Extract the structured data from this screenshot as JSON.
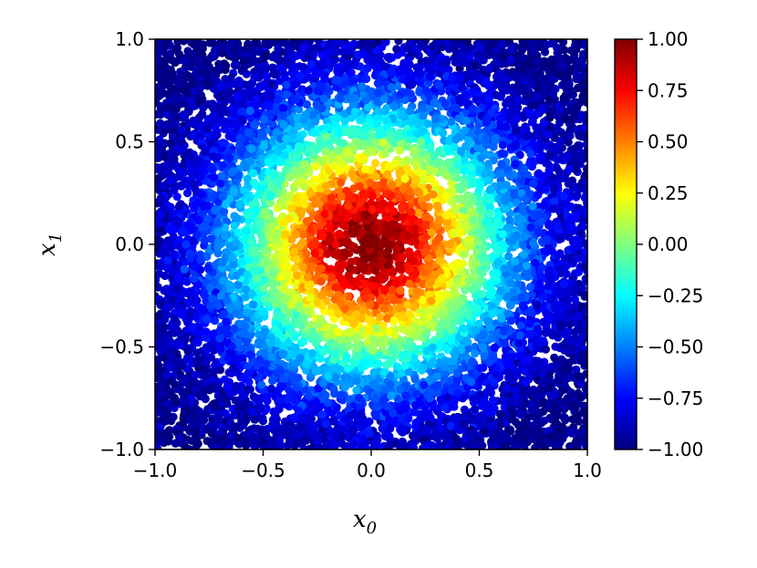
{
  "chart_data": {
    "type": "scatter",
    "title": "",
    "xlabel": "x",
    "xlabel_sub": "0",
    "ylabel": "x",
    "ylabel_sub": "1",
    "xlim": [
      -1.0,
      1.0
    ],
    "ylim": [
      -1.0,
      1.0
    ],
    "x_ticks": [
      -1.0,
      -0.5,
      0.0,
      0.5,
      1.0
    ],
    "x_tick_labels": [
      "−1.0",
      "−0.5",
      "0.0",
      "0.5",
      "1.0"
    ],
    "y_ticks": [
      -1.0,
      -0.5,
      0.0,
      0.5,
      1.0
    ],
    "y_tick_labels": [
      "−1.0",
      "−0.5",
      "0.0",
      "0.5",
      "1.0"
    ],
    "grid": false,
    "colormap": "jet",
    "color_value": "f(x0, x1) ≈ 2·exp(−(x0² + x1²)/0.35) − 1, approximately peaking at 1.00 at the origin and falling to about −1.00 in the corners",
    "colorbar": {
      "range": [
        -1.0,
        1.0
      ],
      "ticks": [
        1.0,
        0.75,
        0.5,
        0.25,
        0.0,
        -0.25,
        -0.5,
        -0.75,
        -1.0
      ],
      "tick_labels": [
        "1.00",
        "0.75",
        "0.50",
        "0.25",
        "0.00",
        "−0.25",
        "−0.50",
        "−0.75",
        "−1.00"
      ],
      "placement": "right"
    },
    "points": {
      "distribution": "dense uniform sampling of the square [-1,1] x [-1,1]",
      "approx_count": 9000
    }
  }
}
